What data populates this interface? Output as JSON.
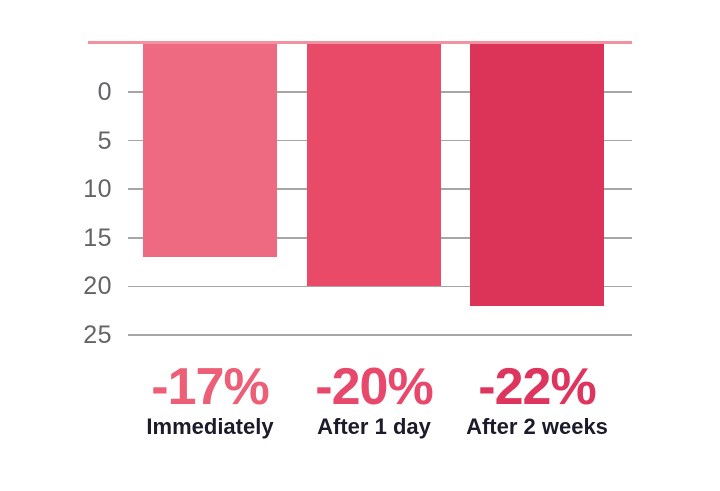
{
  "chart_data": {
    "type": "bar",
    "title": "",
    "xlabel": "",
    "ylabel": "",
    "categories": [
      "Immediately",
      "After 1 day",
      "After 2 weeks"
    ],
    "values": [
      -17,
      -20,
      -22
    ],
    "value_labels": [
      "-17%",
      "-20%",
      "-22%"
    ],
    "yticks": [
      0,
      5,
      10,
      15,
      20,
      25
    ],
    "ylim": [
      -5,
      25
    ],
    "y_axis_direction": "inverted-downward",
    "grid": true,
    "legend": false,
    "bar_colors": [
      "#ED6A80",
      "#E94A68",
      "#DC3459"
    ],
    "value_label_colors": [
      "#EC5F77",
      "#E8486B",
      "#DE355E"
    ],
    "category_label_color": "#1B1B2B",
    "axis_tick_color": "#636466",
    "gridline_color": "#A6A6A6",
    "baseline_color": "#F2919F",
    "background_color": "#FFFFFF"
  }
}
